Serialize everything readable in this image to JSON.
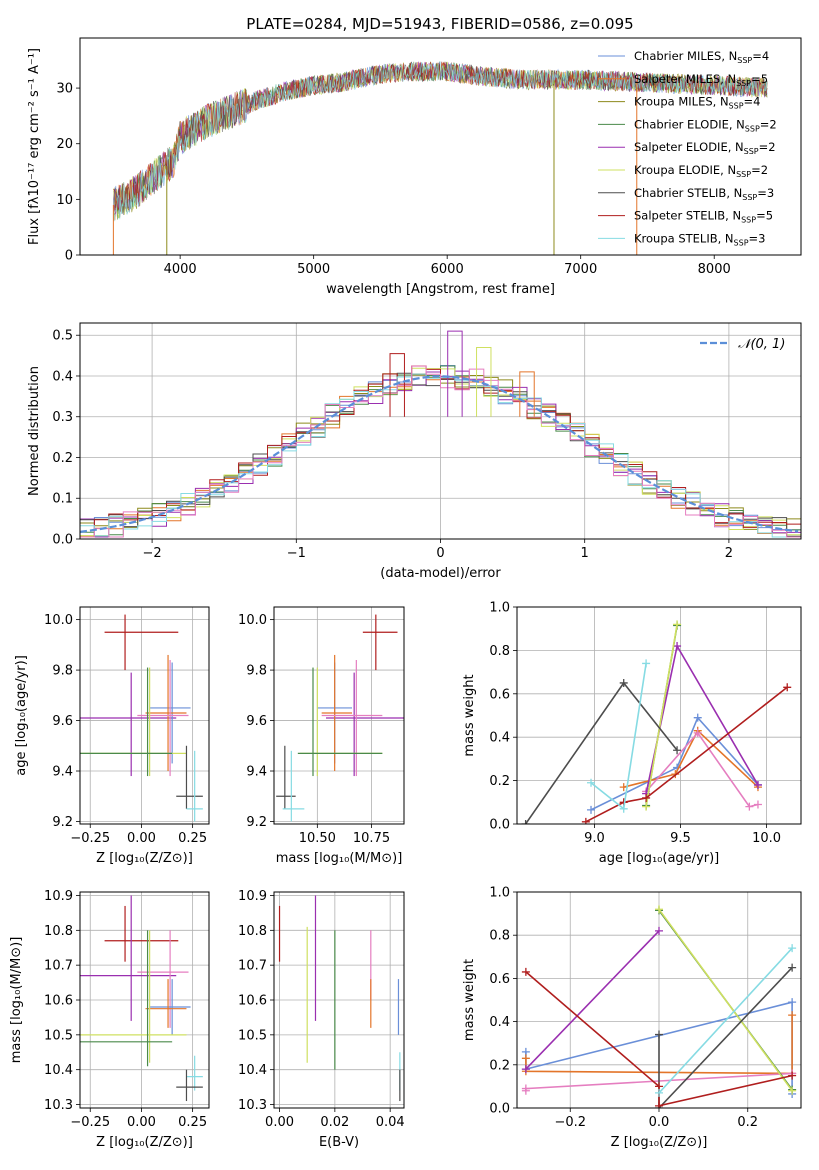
{
  "figure_title": "PLATE=0284, MJD=51943, FIBERID=0586, z=0.095",
  "colors": {
    "Chabrier MILES": "#6a8fd8",
    "Salpeter MILES": "#e3752a",
    "Kroupa MILES": "#8d8a1c",
    "Chabrier ELODIE": "#4a8a4a",
    "Salpeter ELODIE": "#9a2fb0",
    "Kroupa ELODIE": "#cfe060",
    "Chabrier STELIB": "#4d4d4d",
    "Salpeter STELIB": "#b01e1e",
    "Kroupa STELIB": "#86dbe3",
    "pink": "#e57ec0",
    "normal": "#5b8fd8"
  },
  "chart_data": [
    {
      "id": "spectrum",
      "type": "line",
      "xlabel": "wavelength [Angstrom, rest frame]",
      "ylabel": "Flux [fλ10⁻¹⁷ erg cm⁻² s⁻¹ A⁻¹]",
      "xlim": [
        3250,
        8650
      ],
      "ylim": [
        0,
        39
      ],
      "xticks": [
        4000,
        5000,
        6000,
        7000,
        8000
      ],
      "yticks": [
        0,
        10,
        20,
        30
      ],
      "legend_position": "top-right",
      "continuum": [
        [
          3500,
          9
        ],
        [
          3650,
          11
        ],
        [
          3800,
          14
        ],
        [
          3950,
          17
        ],
        [
          4000,
          21
        ],
        [
          4200,
          24
        ],
        [
          4400,
          26
        ],
        [
          4600,
          28
        ],
        [
          4800,
          29.5
        ],
        [
          5000,
          30.5
        ],
        [
          5200,
          31
        ],
        [
          5500,
          32.5
        ],
        [
          5700,
          33
        ],
        [
          6000,
          33
        ],
        [
          6300,
          32
        ],
        [
          6600,
          31.5
        ],
        [
          7000,
          31.5
        ],
        [
          7500,
          31
        ],
        [
          8000,
          30.5
        ],
        [
          8400,
          30
        ]
      ],
      "series": [
        {
          "name": "Chabrier MILES",
          "nssp": "4",
          "color_key": "Chabrier MILES"
        },
        {
          "name": "Salpeter MILES",
          "nssp": "5",
          "color_key": "Salpeter MILES"
        },
        {
          "name": "Kroupa MILES",
          "nssp": "4",
          "color_key": "Kroupa MILES"
        },
        {
          "name": "Chabrier ELODIE",
          "nssp": "2",
          "color_key": "Chabrier ELODIE"
        },
        {
          "name": "Salpeter ELODIE",
          "nssp": "2",
          "color_key": "Salpeter ELODIE"
        },
        {
          "name": "Kroupa ELODIE",
          "nssp": "2",
          "color_key": "Kroupa ELODIE"
        },
        {
          "name": "Chabrier STELIB",
          "nssp": "3",
          "color_key": "Chabrier STELIB"
        },
        {
          "name": "Salpeter STELIB",
          "nssp": "5",
          "color_key": "Salpeter STELIB"
        },
        {
          "name": "Kroupa STELIB",
          "nssp": "3",
          "color_key": "Kroupa STELIB"
        }
      ],
      "spikes": [
        {
          "x": 3500,
          "color_key": "Salpeter MILES"
        },
        {
          "x": 3900,
          "color_key": "Kroupa MILES"
        },
        {
          "x": 6800,
          "color_key": "Kroupa MILES"
        },
        {
          "x": 7420,
          "color_key": "Salpeter MILES"
        }
      ]
    },
    {
      "id": "residuals",
      "type": "histogram",
      "xlabel": "(data-model)/error",
      "ylabel": "Normed distribution",
      "xlim": [
        -2.5,
        2.5
      ],
      "ylim": [
        0,
        0.53
      ],
      "xticks": [
        -2,
        -1,
        0,
        1,
        2
      ],
      "yticks": [
        0.0,
        0.1,
        0.2,
        0.3,
        0.4,
        0.5
      ],
      "bin_width": 0.1,
      "legend": "𝒩(0, 1)",
      "legend_position": "top-right",
      "highlights": [
        {
          "color_key": "Salpeter ELODIE",
          "x": 0.1,
          "value": 0.51
        },
        {
          "color_key": "Salpeter STELIB",
          "x": -0.3,
          "value": 0.455
        },
        {
          "color_key": "Kroupa ELODIE",
          "x": 0.3,
          "value": 0.47
        },
        {
          "color_key": "Salpeter MILES",
          "x": 0.6,
          "value": 0.41
        }
      ]
    },
    {
      "id": "age_vs_Z",
      "type": "errorbar",
      "xlabel": "Z [log₁₀(Z/Z⊙)]",
      "ylabel": "age  [log₁₀(age/yr)]",
      "xlim": [
        -0.3,
        0.33
      ],
      "ylim": [
        9.19,
        10.05
      ],
      "xticks": [
        -0.25,
        0.0,
        0.25
      ],
      "xtick_labels": [
        "−0.25",
        "0.00",
        "0.25"
      ],
      "yticks": [
        9.2,
        9.4,
        9.6,
        9.8,
        10.0
      ],
      "points": [
        {
          "c": "Salpeter STELIB",
          "x": -0.08,
          "xlo": -0.18,
          "xhi": 0.18,
          "y": 9.95,
          "ylo": 9.8,
          "yhi": 10.02
        },
        {
          "c": "Salpeter ELODIE",
          "x": -0.05,
          "xlo": -0.3,
          "xhi": 0.17,
          "y": 9.61,
          "ylo": 9.38,
          "yhi": 9.79
        },
        {
          "c": "Chabrier MILES",
          "x": 0.15,
          "xlo": 0.04,
          "xhi": 0.24,
          "y": 9.65,
          "ylo": 9.43,
          "yhi": 9.83
        },
        {
          "c": "Salpeter MILES",
          "x": 0.13,
          "xlo": 0.02,
          "xhi": 0.22,
          "y": 9.63,
          "ylo": 9.4,
          "yhi": 9.86
        },
        {
          "c": "pink",
          "x": 0.14,
          "xlo": -0.02,
          "xhi": 0.23,
          "y": 9.62,
          "ylo": 9.38,
          "yhi": 9.84
        },
        {
          "c": "Kroupa ELODIE",
          "x": 0.04,
          "xlo": -0.3,
          "xhi": 0.22,
          "y": 9.47,
          "ylo": 9.38,
          "yhi": 9.81
        },
        {
          "c": "Chabrier ELODIE",
          "x": 0.03,
          "xlo": -0.3,
          "xhi": 0.15,
          "y": 9.47,
          "ylo": 9.38,
          "yhi": 9.81
        },
        {
          "c": "Chabrier STELIB",
          "x": 0.22,
          "xlo": 0.17,
          "xhi": 0.3,
          "y": 9.3,
          "ylo": 9.25,
          "yhi": 9.5
        },
        {
          "c": "Kroupa STELIB",
          "x": 0.26,
          "xlo": 0.22,
          "xhi": 0.3,
          "y": 9.25,
          "ylo": 9.2,
          "yhi": 9.48
        }
      ]
    },
    {
      "id": "age_vs_mass",
      "type": "errorbar",
      "xlabel": "mass [log₁₀(M/M⊙)]",
      "ylabel": "",
      "xlim": [
        10.3,
        10.9
      ],
      "ylim": [
        9.19,
        10.05
      ],
      "xticks": [
        10.5,
        10.75
      ],
      "xtick_labels": [
        "10.50",
        "10.75"
      ],
      "yticks": [
        9.2,
        9.4,
        9.6,
        9.8,
        10.0
      ],
      "points": [
        {
          "c": "Salpeter STELIB",
          "x": 10.77,
          "xlo": 10.71,
          "xhi": 10.87,
          "y": 9.95,
          "ylo": 9.8,
          "yhi": 10.02
        },
        {
          "c": "Salpeter ELODIE",
          "x": 10.67,
          "xlo": 10.54,
          "xhi": 10.9,
          "y": 9.61,
          "ylo": 9.38,
          "yhi": 9.79
        },
        {
          "c": "Chabrier MILES",
          "x": 10.58,
          "xlo": 10.5,
          "xhi": 10.66,
          "y": 9.65,
          "ylo": 9.43,
          "yhi": 9.83
        },
        {
          "c": "Salpeter MILES",
          "x": 10.58,
          "xlo": 10.52,
          "xhi": 10.66,
          "y": 9.63,
          "ylo": 9.4,
          "yhi": 9.86
        },
        {
          "c": "pink",
          "x": 10.68,
          "xlo": 10.52,
          "xhi": 10.8,
          "y": 9.62,
          "ylo": 9.38,
          "yhi": 9.84
        },
        {
          "c": "Kroupa ELODIE",
          "x": 10.5,
          "xlo": 10.42,
          "xhi": 10.8,
          "y": 9.47,
          "ylo": 9.38,
          "yhi": 9.81
        },
        {
          "c": "Chabrier ELODIE",
          "x": 10.48,
          "xlo": 10.41,
          "xhi": 10.8,
          "y": 9.47,
          "ylo": 9.38,
          "yhi": 9.81
        },
        {
          "c": "Chabrier STELIB",
          "x": 10.35,
          "xlo": 10.31,
          "xhi": 10.4,
          "y": 9.3,
          "ylo": 9.25,
          "yhi": 9.5
        },
        {
          "c": "Kroupa STELIB",
          "x": 10.38,
          "xlo": 10.34,
          "xhi": 10.44,
          "y": 9.25,
          "ylo": 9.2,
          "yhi": 9.48
        }
      ]
    },
    {
      "id": "weight_vs_age",
      "type": "line",
      "xlabel": "age  [log₁₀(age/yr)]",
      "ylabel": "mass weight",
      "xlim": [
        8.55,
        10.2
      ],
      "ylim": [
        0,
        1
      ],
      "xticks": [
        9.0,
        9.5,
        10.0
      ],
      "xtick_labels": [
        "9.0",
        "9.5",
        "10.0"
      ],
      "yticks": [
        0.0,
        0.2,
        0.4,
        0.6,
        0.8,
        1.0
      ],
      "series": [
        {
          "c": "Chabrier MILES",
          "points": [
            [
              8.98,
              0.065
            ],
            [
              9.48,
              0.26
            ],
            [
              9.6,
              0.49
            ],
            [
              9.95,
              0.18
            ]
          ]
        },
        {
          "c": "Salpeter MILES",
          "points": [
            [
              9.17,
              0.17
            ],
            [
              9.47,
              0.23
            ],
            [
              9.6,
              0.43
            ],
            [
              9.95,
              0.17
            ]
          ]
        },
        {
          "c": "pink",
          "points": [
            [
              9.3,
              0.15
            ],
            [
              9.6,
              0.42
            ],
            [
              9.9,
              0.08
            ],
            [
              9.95,
              0.09
            ]
          ]
        },
        {
          "c": "Chabrier ELODIE",
          "points": [
            [
              9.3,
              0.085
            ],
            [
              9.48,
              0.915
            ]
          ]
        },
        {
          "c": "Salpeter ELODIE",
          "points": [
            [
              9.3,
              0.14
            ],
            [
              9.48,
              0.82
            ],
            [
              9.95,
              0.18
            ]
          ]
        },
        {
          "c": "Kroupa ELODIE",
          "points": [
            [
              9.3,
              0.08
            ],
            [
              9.48,
              0.92
            ]
          ]
        },
        {
          "c": "Chabrier STELIB",
          "points": [
            [
              8.6,
              0.0
            ],
            [
              9.17,
              0.65
            ],
            [
              9.48,
              0.34
            ]
          ]
        },
        {
          "c": "Salpeter STELIB",
          "points": [
            [
              8.95,
              0.01
            ],
            [
              9.17,
              0.1
            ],
            [
              9.3,
              0.12
            ],
            [
              10.12,
              0.63
            ]
          ]
        },
        {
          "c": "Kroupa STELIB",
          "points": [
            [
              8.98,
              0.19
            ],
            [
              9.17,
              0.07
            ],
            [
              9.3,
              0.74
            ]
          ]
        }
      ]
    },
    {
      "id": "mass_vs_Z",
      "type": "errorbar",
      "xlabel": "Z [log₁₀(Z/Z⊙)]",
      "ylabel": "mass [log₁₀(M/M⊙)]",
      "xlim": [
        -0.3,
        0.33
      ],
      "ylim": [
        10.29,
        10.91
      ],
      "xticks": [
        -0.25,
        0.0,
        0.25
      ],
      "xtick_labels": [
        "−0.25",
        "0.00",
        "0.25"
      ],
      "yticks": [
        10.3,
        10.4,
        10.5,
        10.6,
        10.7,
        10.8,
        10.9
      ],
      "points": [
        {
          "c": "Salpeter STELIB",
          "x": -0.08,
          "xlo": -0.18,
          "xhi": 0.18,
          "y": 10.77,
          "ylo": 10.71,
          "yhi": 10.87
        },
        {
          "c": "Salpeter ELODIE",
          "x": -0.05,
          "xlo": -0.3,
          "xhi": 0.17,
          "y": 10.67,
          "ylo": 10.54,
          "yhi": 10.9
        },
        {
          "c": "pink",
          "x": 0.14,
          "xlo": -0.02,
          "xhi": 0.23,
          "y": 10.68,
          "ylo": 10.52,
          "yhi": 10.8
        },
        {
          "c": "Chabrier MILES",
          "x": 0.15,
          "xlo": 0.04,
          "xhi": 0.24,
          "y": 10.58,
          "ylo": 10.5,
          "yhi": 10.66
        },
        {
          "c": "Salpeter MILES",
          "x": 0.13,
          "xlo": 0.02,
          "xhi": 0.22,
          "y": 10.575,
          "ylo": 10.52,
          "yhi": 10.66
        },
        {
          "c": "Kroupa ELODIE",
          "x": 0.04,
          "xlo": -0.3,
          "xhi": 0.22,
          "y": 10.5,
          "ylo": 10.42,
          "yhi": 10.8
        },
        {
          "c": "Chabrier ELODIE",
          "x": 0.03,
          "xlo": -0.3,
          "xhi": 0.15,
          "y": 10.48,
          "ylo": 10.41,
          "yhi": 10.8
        },
        {
          "c": "Kroupa STELIB",
          "x": 0.26,
          "xlo": 0.22,
          "xhi": 0.3,
          "y": 10.38,
          "ylo": 10.34,
          "yhi": 10.44
        },
        {
          "c": "Chabrier STELIB",
          "x": 0.22,
          "xlo": 0.17,
          "xhi": 0.3,
          "y": 10.35,
          "ylo": 10.31,
          "yhi": 10.4
        }
      ]
    },
    {
      "id": "mass_vs_EBV",
      "type": "errorbar",
      "xlabel": "E(B-V)",
      "ylabel": "",
      "xlim": [
        -0.002,
        0.045
      ],
      "ylim": [
        10.29,
        10.91
      ],
      "xticks": [
        0.0,
        0.02,
        0.04
      ],
      "xtick_labels": [
        "0.00",
        "0.02",
        "0.04"
      ],
      "yticks": [
        10.3,
        10.4,
        10.5,
        10.6,
        10.7,
        10.8,
        10.9
      ],
      "points": [
        {
          "c": "Salpeter STELIB",
          "x": 0.0,
          "y": 10.77,
          "ylo": 10.71,
          "yhi": 10.87
        },
        {
          "c": "Kroupa ELODIE",
          "x": 0.01,
          "y": 10.62,
          "ylo": 10.42,
          "yhi": 10.81
        },
        {
          "c": "Salpeter ELODIE",
          "x": 0.013,
          "y": 10.72,
          "ylo": 10.54,
          "yhi": 10.9
        },
        {
          "c": "Chabrier ELODIE",
          "x": 0.02,
          "y": 10.6,
          "ylo": 10.4,
          "yhi": 10.8
        },
        {
          "c": "pink",
          "x": 0.033,
          "y": 10.7,
          "ylo": 10.6,
          "yhi": 10.8
        },
        {
          "c": "Salpeter MILES",
          "x": 0.033,
          "y": 10.57,
          "ylo": 10.52,
          "yhi": 10.66
        },
        {
          "c": "Chabrier MILES",
          "x": 0.043,
          "y": 10.58,
          "ylo": 10.5,
          "yhi": 10.66
        },
        {
          "c": "Kroupa STELIB",
          "x": 0.0435,
          "y": 10.4,
          "ylo": 10.34,
          "yhi": 10.45
        },
        {
          "c": "Chabrier STELIB",
          "x": 0.0435,
          "y": 10.35,
          "ylo": 10.31,
          "yhi": 10.4
        }
      ]
    },
    {
      "id": "weight_vs_Z",
      "type": "line",
      "xlabel": "Z [log₁₀(Z/Z⊙)]",
      "ylabel": "mass weight",
      "xlim": [
        -0.32,
        0.32
      ],
      "ylim": [
        0,
        1
      ],
      "xticks": [
        -0.2,
        0.0,
        0.2
      ],
      "xtick_labels": [
        "−0.2",
        "0.0",
        "0.2"
      ],
      "yticks": [
        0.0,
        0.2,
        0.4,
        0.6,
        0.8,
        1.0
      ],
      "series": [
        {
          "c": "Chabrier MILES",
          "points": [
            [
              -0.3,
              0.26
            ],
            [
              -0.3,
              0.18
            ],
            [
              0.3,
              0.49
            ],
            [
              0.3,
              0.065
            ]
          ]
        },
        {
          "c": "Salpeter MILES",
          "points": [
            [
              -0.3,
              0.23
            ],
            [
              -0.3,
              0.17
            ],
            [
              0.3,
              0.16
            ],
            [
              0.3,
              0.43
            ]
          ]
        },
        {
          "c": "pink",
          "points": [
            [
              -0.3,
              0.08
            ],
            [
              -0.3,
              0.09
            ],
            [
              0.3,
              0.16
            ]
          ]
        },
        {
          "c": "Chabrier ELODIE",
          "points": [
            [
              0.0,
              0.915
            ],
            [
              0.3,
              0.085
            ]
          ]
        },
        {
          "c": "Salpeter ELODIE",
          "points": [
            [
              -0.3,
              0.18
            ],
            [
              0.0,
              0.82
            ]
          ]
        },
        {
          "c": "Kroupa ELODIE",
          "points": [
            [
              0.0,
              0.92
            ],
            [
              0.3,
              0.08
            ]
          ]
        },
        {
          "c": "Chabrier STELIB",
          "points": [
            [
              0.0,
              0.34
            ],
            [
              0.0,
              0.0
            ],
            [
              0.3,
              0.65
            ]
          ]
        },
        {
          "c": "Salpeter STELIB",
          "points": [
            [
              -0.3,
              0.63
            ],
            [
              0.0,
              0.1
            ],
            [
              0.0,
              0.01
            ],
            [
              0.3,
              0.15
            ]
          ]
        },
        {
          "c": "Kroupa STELIB",
          "points": [
            [
              0.0,
              0.07
            ],
            [
              0.3,
              0.74
            ]
          ]
        }
      ]
    }
  ]
}
